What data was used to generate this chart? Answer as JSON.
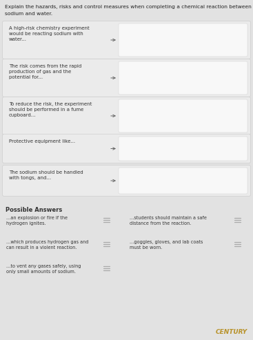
{
  "title_line1": "Explain the hazards, risks and control measures when completing a chemical reaction between",
  "title_line2": "sodium and water.",
  "bg_color": "#e2e2e2",
  "card_bg": "#ebebeb",
  "card_border": "#c8c8c8",
  "white_box_bg": "#f8f8f8",
  "white_box_border": "#d8d8d8",
  "arrow_color": "#666666",
  "text_color": "#333333",
  "title_color": "#222222",
  "possible_answers_title": "Possible Answers",
  "prompts": [
    "A high-risk chemistry experiment\nwould be reacting sodium with\nwater...",
    "The risk comes from the rapid\nproduction of gas and the\npotential for...",
    "To reduce the risk, the experiment\nshould be performed in a fume\ncupboard...",
    "Protective equipment like...",
    "The sodium should be handled\nwith tongs, and..."
  ],
  "card_tops": [
    33,
    88,
    143,
    197,
    242
  ],
  "card_heights": [
    50,
    50,
    50,
    37,
    40
  ],
  "answers": [
    {
      "left_text": "...an explosion or fire if the\nhydrogen ignites.",
      "right_text": "...students should maintain a safe\ndistance from the reaction."
    },
    {
      "left_text": "...which produces hydrogen gas and\ncan result in a violent reaction.",
      "right_text": "...goggles, gloves, and lab coats\nmust be worn."
    },
    {
      "left_text": "...to vent any gases safely, using\nonly small amounts of sodium.",
      "right_text": null
    }
  ],
  "century_text": "CENTURY",
  "century_color": "#b8922a"
}
